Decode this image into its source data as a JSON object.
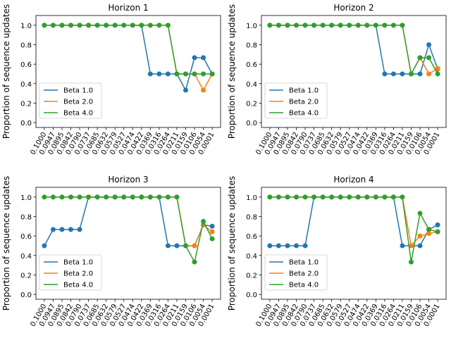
{
  "chart_data": [
    {
      "type": "line",
      "title": "Horizon 1",
      "ylabel": "Proportion of sequence updates",
      "xlabel": "",
      "categories": [
        "0.1000",
        "0.0947",
        "0.0895",
        "0.0842",
        "0.0790",
        "0.0737",
        "0.0685",
        "0.0632",
        "0.0579",
        "0.0527",
        "0.0474",
        "0.0422",
        "0.0369",
        "0.0316",
        "0.0264",
        "0.0211",
        "0.0159",
        "0.0106",
        "0.0054",
        "0.0001"
      ],
      "ylim": [
        -0.05,
        1.1
      ],
      "yticks": [
        "0.0",
        "0.2",
        "0.4",
        "0.6",
        "0.8",
        "1.0"
      ],
      "legend_position": "lower-left",
      "series": [
        {
          "name": "Beta 1.0",
          "color": "#1f77b4",
          "values": [
            1,
            1,
            1,
            1,
            1,
            1,
            1,
            1,
            1,
            1,
            1,
            1,
            0.5,
            0.5,
            0.5,
            0.5,
            0.333,
            0.667,
            0.667,
            0.5
          ]
        },
        {
          "name": "Beta 2.0",
          "color": "#ff7f0e",
          "values": [
            1,
            1,
            1,
            1,
            1,
            1,
            1,
            1,
            1,
            1,
            1,
            1,
            1,
            1,
            1,
            0.5,
            0.5,
            0.5,
            0.333,
            0.5
          ]
        },
        {
          "name": "Beta 4.0",
          "color": "#2ca02c",
          "values": [
            1,
            1,
            1,
            1,
            1,
            1,
            1,
            1,
            1,
            1,
            1,
            1,
            1,
            1,
            1,
            0.5,
            0.5,
            0.5,
            0.5,
            0.5
          ]
        }
      ]
    },
    {
      "type": "line",
      "title": "Horizon 2",
      "ylabel": "Proportion of sequence updates",
      "xlabel": "",
      "categories": [
        "0.1000",
        "0.0947",
        "0.0895",
        "0.0842",
        "0.0790",
        "0.0737",
        "0.0685",
        "0.0632",
        "0.0579",
        "0.0527",
        "0.0474",
        "0.0422",
        "0.0369",
        "0.0316",
        "0.0264",
        "0.0211",
        "0.0159",
        "0.0106",
        "0.0054",
        "0.0001"
      ],
      "ylim": [
        -0.05,
        1.1
      ],
      "yticks": [
        "0.0",
        "0.2",
        "0.4",
        "0.6",
        "0.8",
        "1.0"
      ],
      "legend_position": "lower-left",
      "series": [
        {
          "name": "Beta 1.0",
          "color": "#1f77b4",
          "values": [
            1,
            1,
            1,
            1,
            1,
            1,
            1,
            1,
            1,
            1,
            1,
            1,
            1,
            0.5,
            0.5,
            0.5,
            0.5,
            0.5,
            0.8,
            0.55
          ]
        },
        {
          "name": "Beta 2.0",
          "color": "#ff7f0e",
          "values": [
            1,
            1,
            1,
            1,
            1,
            1,
            1,
            1,
            1,
            1,
            1,
            1,
            1,
            1,
            1,
            1,
            0.5,
            0.667,
            0.5,
            0.556
          ]
        },
        {
          "name": "Beta 4.0",
          "color": "#2ca02c",
          "values": [
            1,
            1,
            1,
            1,
            1,
            1,
            1,
            1,
            1,
            1,
            1,
            1,
            1,
            1,
            1,
            1,
            0.5,
            0.667,
            0.667,
            0.5
          ]
        }
      ]
    },
    {
      "type": "line",
      "title": "Horizon 3",
      "ylabel": "Proportion of sequence updates",
      "xlabel": "",
      "categories": [
        "0.1000",
        "0.0947",
        "0.0895",
        "0.0842",
        "0.0790",
        "0.0737",
        "0.0685",
        "0.0632",
        "0.0579",
        "0.0527",
        "0.0474",
        "0.0422",
        "0.0369",
        "0.0316",
        "0.0264",
        "0.0211",
        "0.0159",
        "0.0106",
        "0.0054",
        "0.0001"
      ],
      "ylim": [
        -0.05,
        1.1
      ],
      "yticks": [
        "0.0",
        "0.2",
        "0.4",
        "0.6",
        "0.8",
        "1.0"
      ],
      "legend_position": "lower-left",
      "series": [
        {
          "name": "Beta 1.0",
          "color": "#1f77b4",
          "values": [
            0.5,
            0.667,
            0.667,
            0.667,
            0.667,
            1,
            1,
            1,
            1,
            1,
            1,
            1,
            1,
            1,
            0.5,
            0.5,
            0.5,
            0.5,
            0.714,
            0.7
          ]
        },
        {
          "name": "Beta 2.0",
          "color": "#ff7f0e",
          "values": [
            1,
            1,
            1,
            1,
            1,
            1,
            1,
            1,
            1,
            1,
            1,
            1,
            1,
            1,
            1,
            1,
            0.5,
            0.5,
            0.714,
            0.643
          ]
        },
        {
          "name": "Beta 4.0",
          "color": "#2ca02c",
          "values": [
            1,
            1,
            1,
            1,
            1,
            1,
            1,
            1,
            1,
            1,
            1,
            1,
            1,
            1,
            1,
            1,
            0.5,
            0.333,
            0.75,
            0.571
          ]
        }
      ]
    },
    {
      "type": "line",
      "title": "Horizon 4",
      "ylabel": "Proportion of sequence updates",
      "xlabel": "",
      "categories": [
        "0.1000",
        "0.0947",
        "0.0895",
        "0.0842",
        "0.0790",
        "0.0737",
        "0.0685",
        "0.0632",
        "0.0579",
        "0.0527",
        "0.0474",
        "0.0422",
        "0.0369",
        "0.0316",
        "0.0264",
        "0.0211",
        "0.0159",
        "0.0106",
        "0.0054",
        "0.0001"
      ],
      "ylim": [
        -0.05,
        1.1
      ],
      "yticks": [
        "0.0",
        "0.2",
        "0.4",
        "0.6",
        "0.8",
        "1.0"
      ],
      "legend_position": "lower-left",
      "series": [
        {
          "name": "Beta 1.0",
          "color": "#1f77b4",
          "values": [
            0.5,
            0.5,
            0.5,
            0.5,
            0.5,
            1,
            1,
            1,
            1,
            1,
            1,
            1,
            1,
            1,
            1,
            0.5,
            0.5,
            0.5,
            0.667,
            0.714
          ]
        },
        {
          "name": "Beta 2.0",
          "color": "#ff7f0e",
          "values": [
            1,
            1,
            1,
            1,
            1,
            1,
            1,
            1,
            1,
            1,
            1,
            1,
            1,
            1,
            1,
            1,
            0.5,
            0.6,
            0.625,
            0.643
          ]
        },
        {
          "name": "Beta 4.0",
          "color": "#2ca02c",
          "values": [
            1,
            1,
            1,
            1,
            1,
            1,
            1,
            1,
            1,
            1,
            1,
            1,
            1,
            1,
            1,
            1,
            0.333,
            0.833,
            0.667,
            0.643
          ]
        }
      ]
    }
  ]
}
